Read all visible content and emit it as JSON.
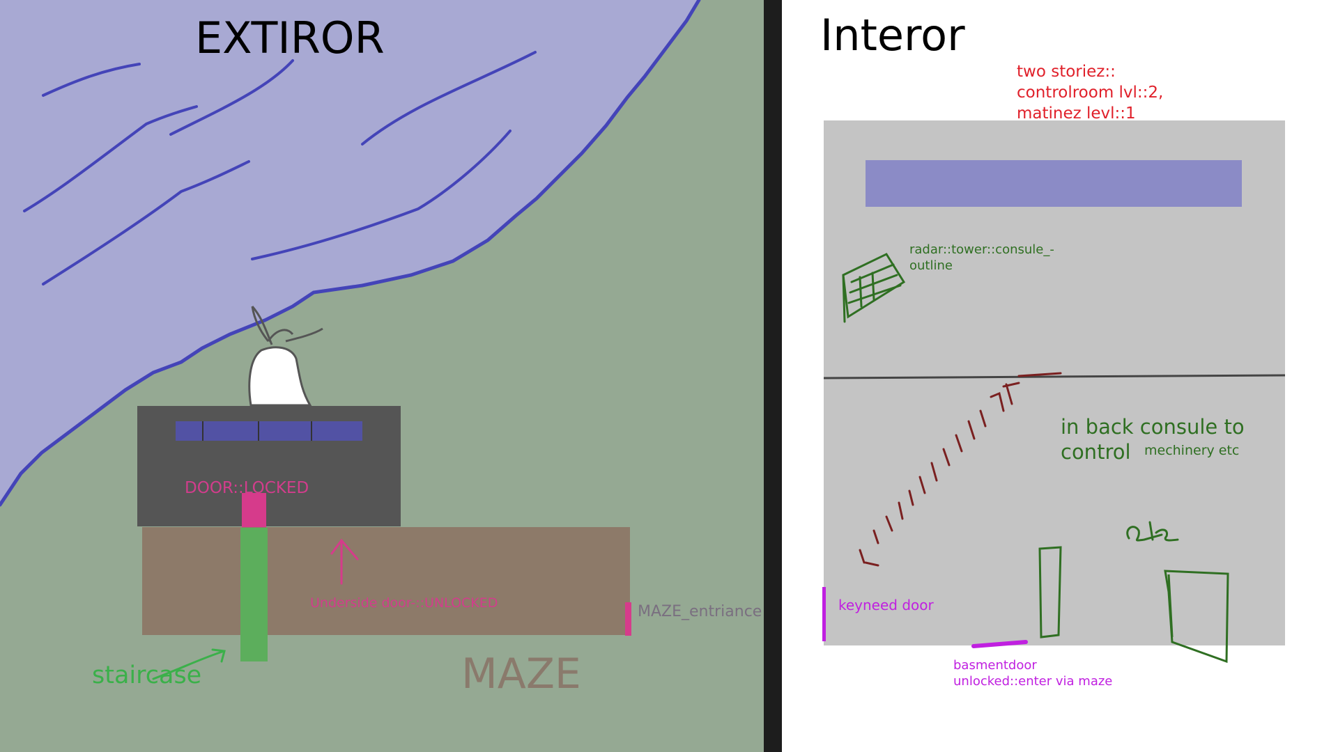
{
  "exterior": {
    "title": "EXTIROR",
    "door_label": "DOOR::LOCKED",
    "underside_label": "Underside door-::UNLOCKED",
    "maze_entrance_label": "MAZE_entriance",
    "staircase_label": "staircase",
    "maze_label": "MAZE",
    "colors": {
      "water": "#a8a9d3",
      "shore": "#4444b8",
      "ground": "#95a993",
      "building": "#555555",
      "maze": "#8d7a69",
      "door": "#d63b8b",
      "staircase": "#5cae5c"
    }
  },
  "interior": {
    "title": "Interor",
    "note": "two storiez::\ncontrolroom lvl::2,\nmatinez levl::1",
    "radar_label": "radar::tower::consule_-\noutline",
    "back_label": "in back consule to\ncontrol",
    "machinery_label": "mechinery etc",
    "etc_label": "etc",
    "keyneed_label": "keyneed door",
    "basement_label": "basmentdoor\nunlocked::enter via maze",
    "colors": {
      "floor": "#c4c4c4",
      "window": "#8b8bc6",
      "stairs": "#7a2020",
      "sketch": "#2f6f22",
      "keydoor": "#c020e0"
    }
  }
}
